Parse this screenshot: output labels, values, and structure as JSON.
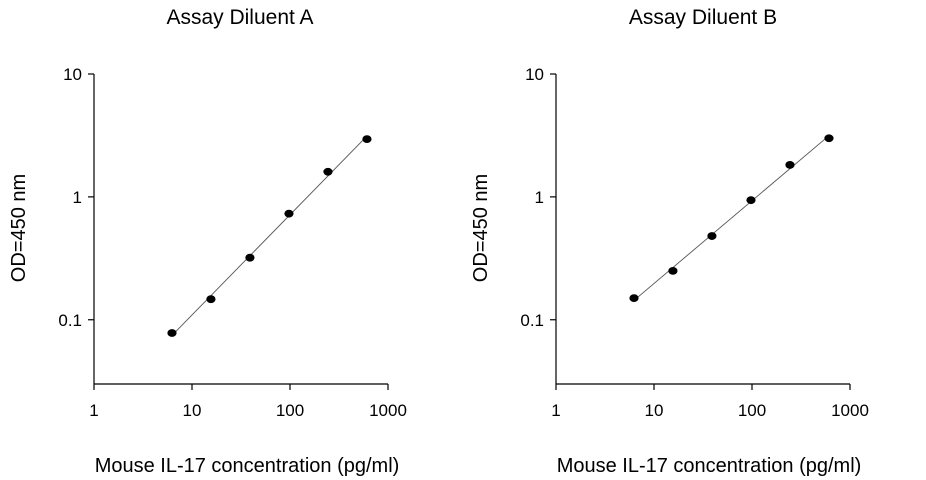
{
  "chart_data": [
    {
      "type": "scatter",
      "title": "Assay Diluent A",
      "xlabel": "Mouse IL-17 concentration (pg/ml)",
      "ylabel": "OD=450 nm",
      "xscale": "log",
      "yscale": "log",
      "xlim": [
        1,
        1000
      ],
      "ylim": [
        0.03,
        10
      ],
      "xticks": [
        1,
        10,
        100,
        1000
      ],
      "xtick_labels": [
        "1",
        "10",
        "100",
        "1000"
      ],
      "yticks": [
        0.1,
        1,
        10
      ],
      "ytick_labels": [
        "0.1",
        "1",
        "10"
      ],
      "grid": false,
      "fit_line": true,
      "series": [
        {
          "x": [
            6.25,
            15.6,
            39,
            97.6,
            244,
            610
          ],
          "y": [
            0.078,
            0.147,
            0.32,
            0.73,
            1.6,
            2.95
          ]
        }
      ]
    },
    {
      "type": "scatter",
      "title": "Assay Diluent B",
      "xlabel": "Mouse IL-17 concentration (pg/ml)",
      "ylabel": "OD=450 nm",
      "xscale": "log",
      "yscale": "log",
      "xlim": [
        1,
        1000
      ],
      "ylim": [
        0.03,
        10
      ],
      "xticks": [
        1,
        10,
        100,
        1000
      ],
      "xtick_labels": [
        "1",
        "10",
        "100",
        "1000"
      ],
      "yticks": [
        0.1,
        1,
        10
      ],
      "ytick_labels": [
        "0.1",
        "1",
        "10"
      ],
      "grid": false,
      "fit_line": true,
      "series": [
        {
          "x": [
            6.25,
            15.6,
            39,
            97.6,
            244,
            610
          ],
          "y": [
            0.15,
            0.25,
            0.48,
            0.94,
            1.82,
            3.0
          ]
        }
      ]
    }
  ]
}
